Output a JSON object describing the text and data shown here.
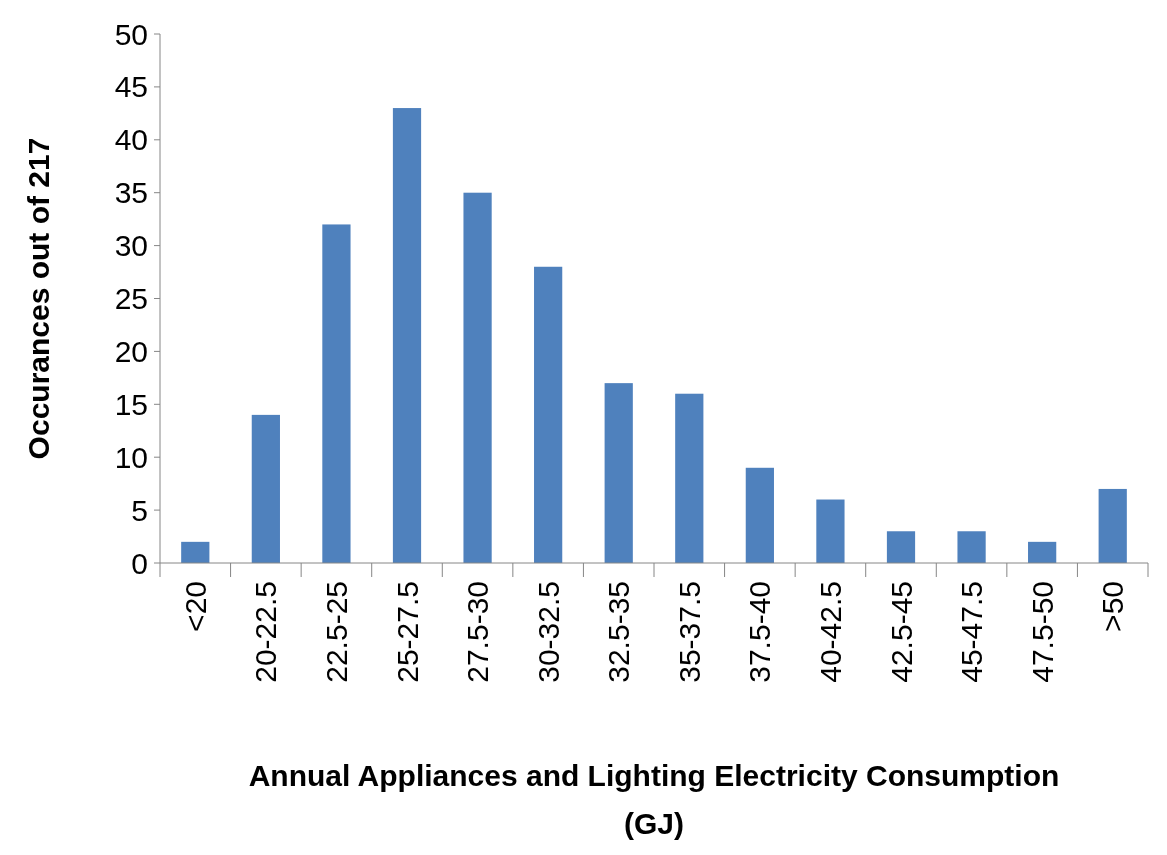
{
  "chart_data": {
    "type": "bar",
    "xlabel": "Annual Appliances and Lighting Electricity Consumption (GJ)",
    "ylabel": "Occurances out of 217",
    "categories": [
      "<20",
      "20-22.5",
      "22.5-25",
      "25-27.5",
      "27.5-30",
      "30-32.5",
      "32.5-35",
      "35-37.5",
      "37.5-40",
      "40-42.5",
      "42.5-45",
      "45-47.5",
      "47.5-50",
      ">50"
    ],
    "values": [
      2,
      14,
      32,
      43,
      35,
      28,
      17,
      16,
      9,
      6,
      3,
      3,
      2,
      7
    ],
    "color": "#4f81bd",
    "ylim": [
      0,
      50
    ],
    "yticks": [
      0,
      5,
      10,
      15,
      20,
      25,
      30,
      35,
      40,
      45,
      50
    ],
    "grid": false
  }
}
